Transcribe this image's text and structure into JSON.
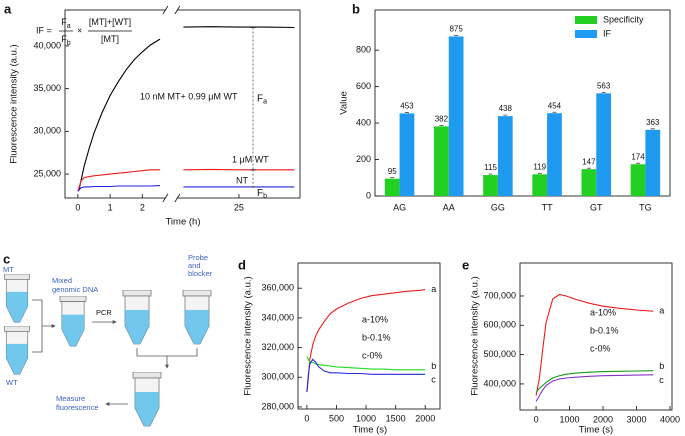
{
  "chart_data": [
    {
      "panel_label": "a",
      "type": "line",
      "xlabel": "Time (h)",
      "ylabel": "Fluorescence intensity (a.u.)",
      "x": [
        0,
        0.05,
        0.1,
        0.2,
        0.35,
        0.5,
        0.75,
        1,
        1.25,
        1.5,
        1.75,
        2,
        2.25,
        2.55,
        24,
        24.5,
        25,
        25.5,
        26
      ],
      "xlim": [
        -0.4,
        26.1
      ],
      "xbreak": [
        2.7,
        23.9
      ],
      "xticks": [
        0,
        1,
        2,
        25
      ],
      "ylim": [
        22200,
        44200
      ],
      "yticks": [
        {
          "value": 25000,
          "label": "25,000"
        },
        {
          "value": 30000,
          "label": "30,000"
        },
        {
          "value": 35000,
          "label": "35,000"
        },
        {
          "value": 40000,
          "label": "40,000"
        }
      ],
      "series": [
        {
          "name": "10 nM MT+ 0.99 μM WT",
          "color": "#000000",
          "values": [
            23000,
            23400,
            24300,
            26000,
            28000,
            29800,
            32200,
            34200,
            35800,
            37200,
            38400,
            39300,
            40100,
            40800,
            42200,
            42250,
            42200,
            42200,
            42150
          ]
        },
        {
          "name": "1 μM WT",
          "color": "#ee1c1c",
          "values": [
            23000,
            23600,
            24200,
            24600,
            24700,
            24800,
            24900,
            25000,
            25100,
            25200,
            25300,
            25400,
            25500,
            25500,
            25500,
            25550,
            25500,
            25500,
            25500
          ]
        },
        {
          "name": "NT",
          "color": "#2020e0",
          "values": [
            23000,
            23200,
            23400,
            23500,
            23500,
            23550,
            23550,
            23550,
            23600,
            23600,
            23600,
            23600,
            23600,
            23650,
            23500,
            23500,
            23500,
            23500,
            23500
          ]
        }
      ],
      "formula": {
        "lhs": "IF =",
        "num": "F",
        "num_sub": "a",
        "den": "F",
        "den_sub": "b",
        "times": "×",
        "num2": "[MT]+[WT]",
        "den2": "[MT]"
      },
      "brackets": [
        {
          "label": "F",
          "sub": "a"
        },
        {
          "label": "F",
          "sub": "b"
        }
      ]
    },
    {
      "panel_label": "b",
      "type": "bar",
      "ylabel": "Value",
      "categories": [
        "AG",
        "AA",
        "GG",
        "TT",
        "GT",
        "TG"
      ],
      "series": [
        {
          "name": "Specificity",
          "color": "#22d022",
          "values": [
            95,
            382,
            115,
            119,
            147,
            174
          ]
        },
        {
          "name": "IF",
          "color": "#1e9bf0",
          "values": [
            453,
            875,
            438,
            454,
            563,
            363
          ]
        }
      ],
      "ylim": [
        0,
        1020
      ],
      "yticks": [
        0,
        200,
        400,
        600,
        800
      ],
      "legend": "upper right"
    },
    {
      "panel_label": "d",
      "type": "line",
      "xlabel": "Time (s)",
      "ylabel": "Fluorescence intensity (a.u.)",
      "x": [
        0,
        25,
        50,
        100,
        150,
        200,
        300,
        400,
        500,
        700,
        900,
        1100,
        1300,
        1500,
        1700,
        1900,
        2000
      ],
      "xlim": [
        -150,
        2250
      ],
      "xticks": [
        0,
        500,
        1000,
        1500,
        2000
      ],
      "ylim": [
        278600,
        377000
      ],
      "yticks": [
        {
          "value": 280000,
          "label": "280,000"
        },
        {
          "value": 300000,
          "label": "300,000"
        },
        {
          "value": 320000,
          "label": "320,000"
        },
        {
          "value": 340000,
          "label": "340,000"
        },
        {
          "value": 360000,
          "label": "360,000"
        }
      ],
      "series": [
        {
          "name": "a",
          "color": "#ee1c1c",
          "values": [
            290000,
            300000,
            312000,
            322000,
            328000,
            332000,
            338000,
            343000,
            346000,
            350000,
            353000,
            355000,
            356000,
            357000,
            358000,
            358500,
            359000
          ]
        },
        {
          "name": "b",
          "color": "#22dd22",
          "values": [
            314000,
            312000,
            310000,
            310000,
            309000,
            308500,
            308000,
            307500,
            307000,
            306500,
            306000,
            305500,
            305500,
            305000,
            305000,
            305000,
            305000
          ]
        },
        {
          "name": "c",
          "color": "#2a2ad8",
          "values": [
            290000,
            302000,
            309000,
            312000,
            310000,
            307000,
            304000,
            303000,
            303000,
            302500,
            302500,
            302000,
            302000,
            302000,
            302000,
            302000,
            302000
          ]
        }
      ],
      "annotations": [
        "a-10%",
        "b-0.1%",
        "c-0%"
      ]
    },
    {
      "panel_label": "e",
      "type": "line",
      "xlabel": "Time (s)",
      "ylabel": "Fluorescence intensity (a.u.)",
      "x": [
        0,
        100,
        200,
        300,
        500,
        700,
        900,
        1200,
        1600,
        2000,
        2500,
        3000,
        3500
      ],
      "xlim": [
        -480,
        4060
      ],
      "xticks": [
        0,
        1000,
        2000,
        3000,
        4000
      ],
      "ylim": [
        311000,
        812500
      ],
      "yticks": [
        {
          "value": 400000,
          "label": "400,000"
        },
        {
          "value": 500000,
          "label": "500,000"
        },
        {
          "value": 600000,
          "label": "600,000"
        },
        {
          "value": 700000,
          "label": "700,000"
        }
      ],
      "series": [
        {
          "name": "a",
          "color": "#ee1c1c",
          "values": [
            360000,
            420000,
            520000,
            610000,
            690000,
            705000,
            700000,
            688000,
            675000,
            665000,
            658000,
            652000,
            648000
          ]
        },
        {
          "name": "b",
          "color": "#1a9a1a",
          "values": [
            370000,
            385000,
            395000,
            405000,
            420000,
            428000,
            433000,
            437000,
            440000,
            442000,
            443000,
            444000,
            445000
          ]
        },
        {
          "name": "c",
          "color": "#8833cc",
          "values": [
            340000,
            360000,
            380000,
            395000,
            410000,
            417000,
            420000,
            423000,
            426000,
            428000,
            429000,
            430000,
            431000
          ]
        }
      ],
      "annotations": [
        "a-10%",
        "b-0.1%",
        "c-0%"
      ]
    }
  ],
  "diagram": {
    "panel_label": "c",
    "mt": "MT",
    "wt": "WT",
    "mixed": [
      "Mixed",
      "genomic DNA"
    ],
    "pcr": "PCR",
    "probe": [
      "Probe",
      "and",
      "blocker"
    ],
    "measure": [
      "Measure",
      "fluorescence"
    ]
  }
}
